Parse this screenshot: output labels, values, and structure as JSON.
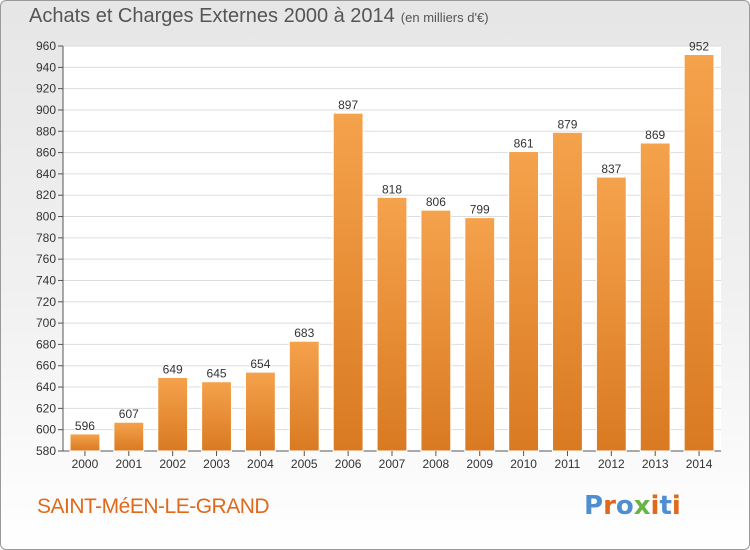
{
  "chart_data": {
    "type": "bar",
    "title": "Achats et Charges Externes 2000 à 2014",
    "subtitle": "(en milliers d'€)",
    "categories": [
      "2000",
      "2001",
      "2002",
      "2003",
      "2004",
      "2005",
      "2006",
      "2007",
      "2008",
      "2009",
      "2010",
      "2011",
      "2012",
      "2013",
      "2014"
    ],
    "values": [
      596,
      607,
      649,
      645,
      654,
      683,
      897,
      818,
      806,
      799,
      861,
      879,
      837,
      869,
      952
    ],
    "ylim": [
      580,
      960
    ],
    "ytick_step": 20,
    "grid": true,
    "xlabel": "",
    "ylabel": "",
    "bar_color_light": "#f5a24c",
    "bar_color_dark": "#d97a22"
  },
  "footer": {
    "place": "SAINT-MéEN-LE-GRAND",
    "logo_text": "Proxiti",
    "logo_colors": [
      "#4f8fd0",
      "#e0691a",
      "#4f8fd0",
      "#6ab445",
      "#e0691a",
      "#4f8fd0",
      "#e0691a"
    ]
  }
}
